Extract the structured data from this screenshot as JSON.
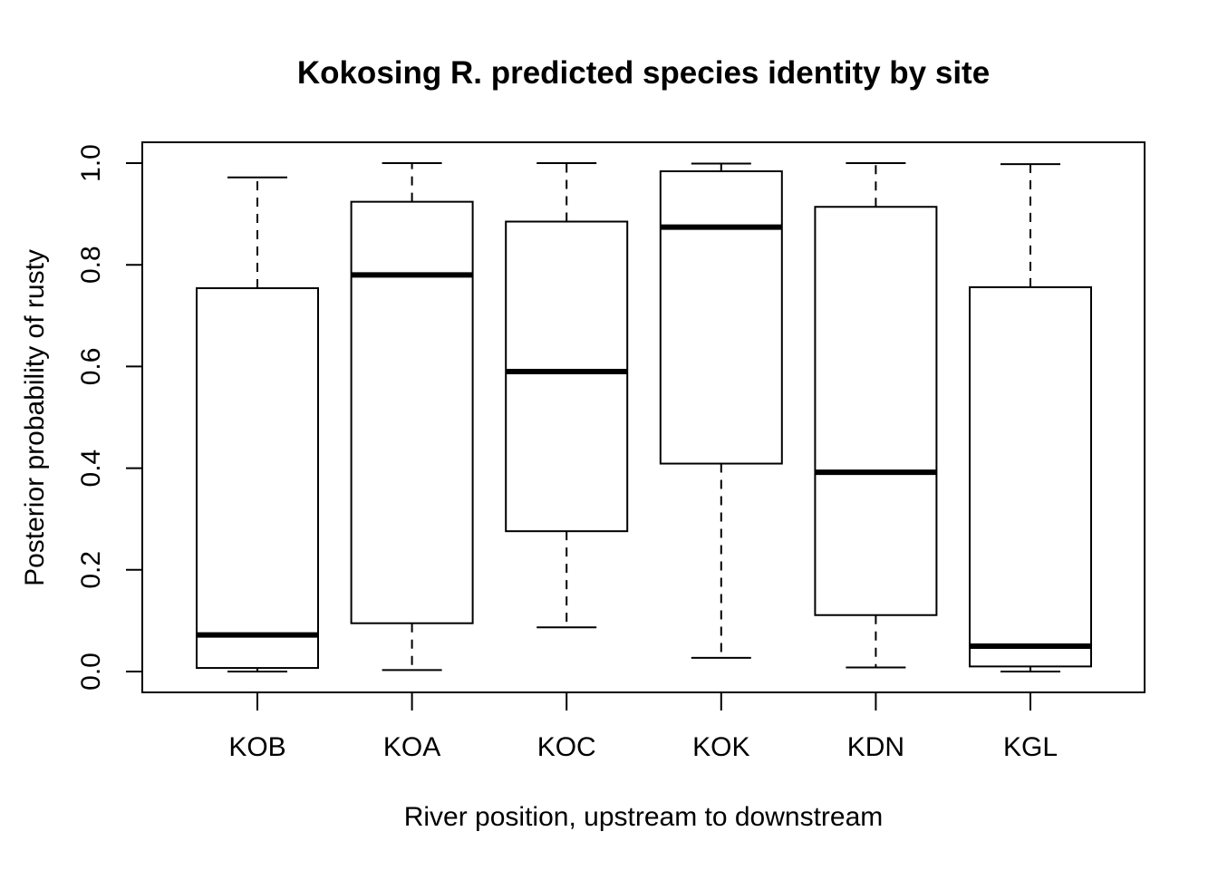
{
  "chart_data": {
    "type": "boxplot",
    "title": "Kokosing R. predicted species identity by site",
    "xlabel": "River position, upstream to downstream",
    "ylabel": "Posterior probability of rusty",
    "ylim": [
      0.0,
      1.0
    ],
    "yticks": [
      "0.0",
      "0.2",
      "0.4",
      "0.6",
      "0.8",
      "1.0"
    ],
    "categories": [
      "KOB",
      "KOA",
      "KOC",
      "KOK",
      "KDN",
      "KGL"
    ],
    "boxes": [
      {
        "min": 0.0,
        "q1": 0.007,
        "median": 0.072,
        "q3": 0.754,
        "max": 0.972
      },
      {
        "min": 0.003,
        "q1": 0.095,
        "median": 0.78,
        "q3": 0.924,
        "max": 1.0
      },
      {
        "min": 0.087,
        "q1": 0.276,
        "median": 0.59,
        "q3": 0.885,
        "max": 1.0
      },
      {
        "min": 0.027,
        "q1": 0.409,
        "median": 0.874,
        "q3": 0.984,
        "max": 0.999
      },
      {
        "min": 0.008,
        "q1": 0.111,
        "median": 0.392,
        "q3": 0.914,
        "max": 1.0
      },
      {
        "min": 0.0,
        "q1": 0.01,
        "median": 0.05,
        "q3": 0.756,
        "max": 0.998
      }
    ],
    "grid": false,
    "legend": "none"
  }
}
